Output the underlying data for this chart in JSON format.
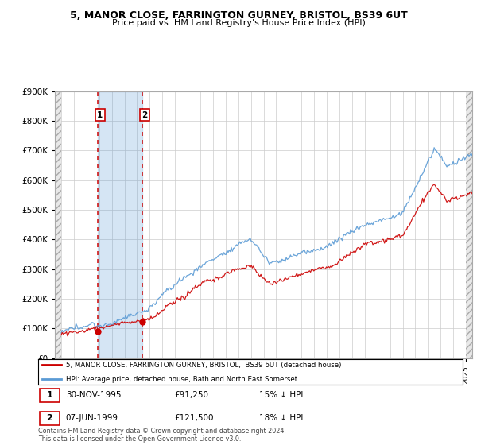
{
  "title1": "5, MANOR CLOSE, FARRINGTON GURNEY, BRISTOL, BS39 6UT",
  "title2": "Price paid vs. HM Land Registry's House Price Index (HPI)",
  "ylim": [
    0,
    900000
  ],
  "yticks": [
    0,
    100000,
    200000,
    300000,
    400000,
    500000,
    600000,
    700000,
    800000,
    900000
  ],
  "ytick_labels": [
    "£0",
    "£100K",
    "£200K",
    "£300K",
    "£400K",
    "£500K",
    "£600K",
    "£700K",
    "£800K",
    "£900K"
  ],
  "xlim_start": 1992.5,
  "xlim_end": 2025.5,
  "purchase1_year": 1995.92,
  "purchase1_price": 91250,
  "purchase2_year": 1999.44,
  "purchase2_price": 121500,
  "legend_line1": "5, MANOR CLOSE, FARRINGTON GURNEY, BRISTOL,  BS39 6UT (detached house)",
  "legend_line2": "HPI: Average price, detached house, Bath and North East Somerset",
  "table_row1": [
    "1",
    "30-NOV-1995",
    "£91,250",
    "15% ↓ HPI"
  ],
  "table_row2": [
    "2",
    "07-JUN-1999",
    "£121,500",
    "18% ↓ HPI"
  ],
  "footer": "Contains HM Land Registry data © Crown copyright and database right 2024.\nThis data is licensed under the Open Government Licence v3.0.",
  "red_color": "#cc0000",
  "blue_color": "#5b9bd5",
  "shade_color": "#ddeeff",
  "background_color": "#ffffff",
  "grid_color": "#cccccc",
  "hatch_fill_color": "#e0e0e0"
}
